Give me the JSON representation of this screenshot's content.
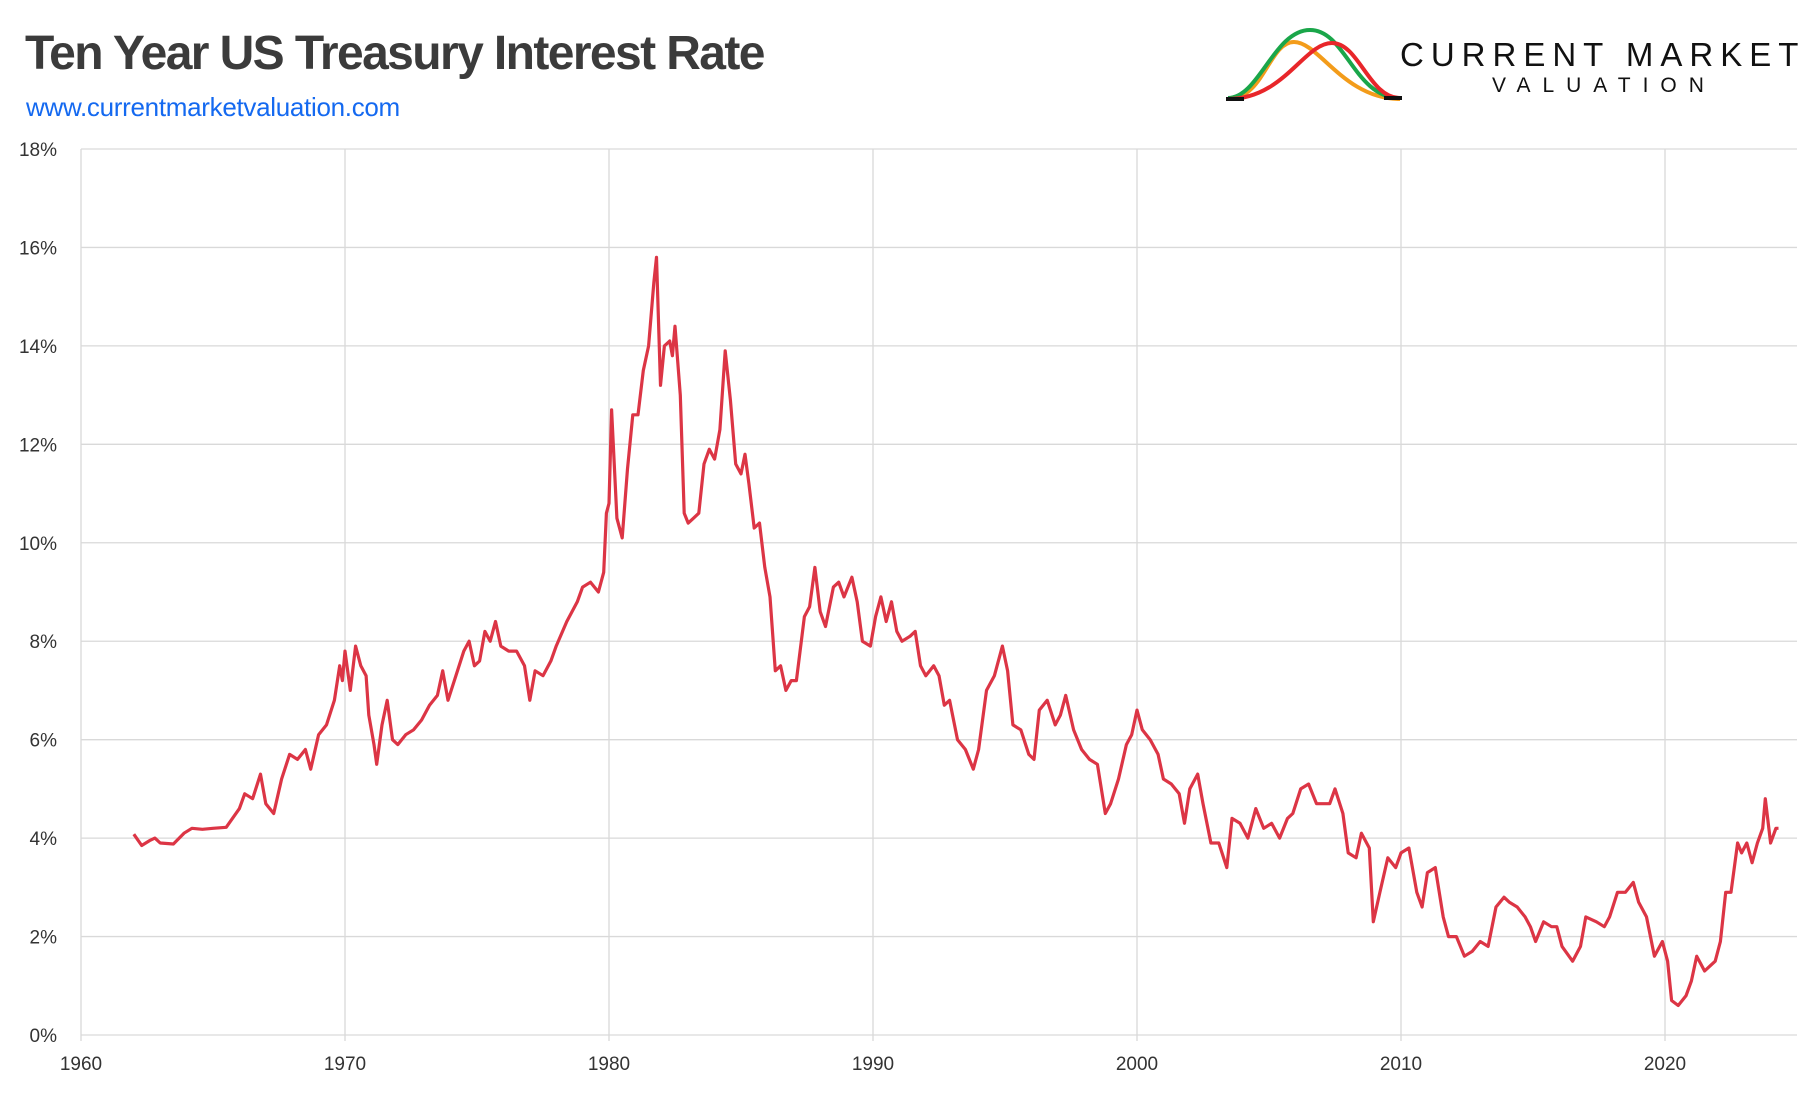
{
  "header": {
    "title": "Ten Year US Treasury Interest Rate",
    "url": "www.currentmarketvaluation.com"
  },
  "logo": {
    "line1": "CURRENT MARKET",
    "line2": "VALUATION",
    "colors": {
      "orange": "#f39c1a",
      "green": "#1aa64a",
      "red": "#e8262a",
      "base": "#111111"
    }
  },
  "colors": {
    "series": "#dc3545",
    "grid": "#d9d9d9",
    "url": "#1469f0",
    "title": "#3b3b3b"
  },
  "chart_data": {
    "type": "line",
    "title": "Ten Year US Treasury Interest Rate",
    "xlabel": "",
    "ylabel": "",
    "xlim": [
      1960,
      2025
    ],
    "ylim": [
      0,
      18
    ],
    "grid": true,
    "x_ticks": [
      1960,
      1970,
      1980,
      1990,
      2000,
      2010,
      2020
    ],
    "y_ticks": [
      "0%",
      "2%",
      "4%",
      "6%",
      "8%",
      "10%",
      "12%",
      "14%",
      "16%",
      "18%"
    ],
    "series": [
      {
        "color": "#dc3545",
        "points": [
          [
            1962.0,
            4.08
          ],
          [
            1962.3,
            3.85
          ],
          [
            1962.6,
            3.95
          ],
          [
            1962.8,
            4.0
          ],
          [
            1963.0,
            3.9
          ],
          [
            1963.5,
            3.88
          ],
          [
            1963.9,
            4.1
          ],
          [
            1964.2,
            4.2
          ],
          [
            1964.6,
            4.18
          ],
          [
            1965.0,
            4.2
          ],
          [
            1965.5,
            4.22
          ],
          [
            1966.0,
            4.6
          ],
          [
            1966.2,
            4.9
          ],
          [
            1966.5,
            4.8
          ],
          [
            1966.8,
            5.3
          ],
          [
            1967.0,
            4.7
          ],
          [
            1967.3,
            4.5
          ],
          [
            1967.6,
            5.2
          ],
          [
            1967.9,
            5.7
          ],
          [
            1968.2,
            5.6
          ],
          [
            1968.5,
            5.8
          ],
          [
            1968.7,
            5.4
          ],
          [
            1969.0,
            6.1
          ],
          [
            1969.3,
            6.3
          ],
          [
            1969.6,
            6.8
          ],
          [
            1969.8,
            7.5
          ],
          [
            1969.9,
            7.2
          ],
          [
            1970.0,
            7.8
          ],
          [
            1970.2,
            7.0
          ],
          [
            1970.4,
            7.9
          ],
          [
            1970.6,
            7.5
          ],
          [
            1970.8,
            7.3
          ],
          [
            1970.9,
            6.5
          ],
          [
            1971.1,
            5.9
          ],
          [
            1971.2,
            5.5
          ],
          [
            1971.4,
            6.3
          ],
          [
            1971.6,
            6.8
          ],
          [
            1971.8,
            6.0
          ],
          [
            1972.0,
            5.9
          ],
          [
            1972.3,
            6.1
          ],
          [
            1972.6,
            6.2
          ],
          [
            1972.9,
            6.4
          ],
          [
            1973.2,
            6.7
          ],
          [
            1973.5,
            6.9
          ],
          [
            1973.7,
            7.4
          ],
          [
            1973.9,
            6.8
          ],
          [
            1974.2,
            7.3
          ],
          [
            1974.5,
            7.8
          ],
          [
            1974.7,
            8.0
          ],
          [
            1974.9,
            7.5
          ],
          [
            1975.1,
            7.6
          ],
          [
            1975.3,
            8.2
          ],
          [
            1975.5,
            8.0
          ],
          [
            1975.7,
            8.4
          ],
          [
            1975.9,
            7.9
          ],
          [
            1976.2,
            7.8
          ],
          [
            1976.5,
            7.8
          ],
          [
            1976.8,
            7.5
          ],
          [
            1977.0,
            6.8
          ],
          [
            1977.2,
            7.4
          ],
          [
            1977.5,
            7.3
          ],
          [
            1977.8,
            7.6
          ],
          [
            1978.0,
            7.9
          ],
          [
            1978.4,
            8.4
          ],
          [
            1978.8,
            8.8
          ],
          [
            1979.0,
            9.1
          ],
          [
            1979.3,
            9.2
          ],
          [
            1979.6,
            9.0
          ],
          [
            1979.8,
            9.4
          ],
          [
            1979.9,
            10.6
          ],
          [
            1980.0,
            10.8
          ],
          [
            1980.1,
            12.7
          ],
          [
            1980.3,
            10.5
          ],
          [
            1980.5,
            10.1
          ],
          [
            1980.7,
            11.5
          ],
          [
            1980.9,
            12.6
          ],
          [
            1981.1,
            12.6
          ],
          [
            1981.3,
            13.5
          ],
          [
            1981.5,
            14.0
          ],
          [
            1981.7,
            15.3
          ],
          [
            1981.8,
            15.8
          ],
          [
            1981.95,
            13.2
          ],
          [
            1982.1,
            14.0
          ],
          [
            1982.3,
            14.1
          ],
          [
            1982.4,
            13.8
          ],
          [
            1982.5,
            14.4
          ],
          [
            1982.7,
            13.0
          ],
          [
            1982.85,
            10.6
          ],
          [
            1983.0,
            10.4
          ],
          [
            1983.2,
            10.5
          ],
          [
            1983.4,
            10.6
          ],
          [
            1983.6,
            11.6
          ],
          [
            1983.8,
            11.9
          ],
          [
            1984.0,
            11.7
          ],
          [
            1984.2,
            12.3
          ],
          [
            1984.4,
            13.9
          ],
          [
            1984.6,
            12.9
          ],
          [
            1984.8,
            11.6
          ],
          [
            1985.0,
            11.4
          ],
          [
            1985.15,
            11.8
          ],
          [
            1985.3,
            11.2
          ],
          [
            1985.5,
            10.3
          ],
          [
            1985.7,
            10.4
          ],
          [
            1985.9,
            9.5
          ],
          [
            1986.1,
            8.9
          ],
          [
            1986.3,
            7.4
          ],
          [
            1986.5,
            7.5
          ],
          [
            1986.7,
            7.0
          ],
          [
            1986.9,
            7.2
          ],
          [
            1987.1,
            7.2
          ],
          [
            1987.4,
            8.5
          ],
          [
            1987.6,
            8.7
          ],
          [
            1987.8,
            9.5
          ],
          [
            1988.0,
            8.6
          ],
          [
            1988.2,
            8.3
          ],
          [
            1988.5,
            9.1
          ],
          [
            1988.7,
            9.2
          ],
          [
            1988.9,
            8.9
          ],
          [
            1989.2,
            9.3
          ],
          [
            1989.4,
            8.8
          ],
          [
            1989.6,
            8.0
          ],
          [
            1989.9,
            7.9
          ],
          [
            1990.1,
            8.5
          ],
          [
            1990.3,
            8.9
          ],
          [
            1990.5,
            8.4
          ],
          [
            1990.7,
            8.8
          ],
          [
            1990.9,
            8.2
          ],
          [
            1991.1,
            8.0
          ],
          [
            1991.4,
            8.1
          ],
          [
            1991.6,
            8.2
          ],
          [
            1991.8,
            7.5
          ],
          [
            1992.0,
            7.3
          ],
          [
            1992.3,
            7.5
          ],
          [
            1992.5,
            7.3
          ],
          [
            1992.7,
            6.7
          ],
          [
            1992.9,
            6.8
          ],
          [
            1993.2,
            6.0
          ],
          [
            1993.5,
            5.8
          ],
          [
            1993.8,
            5.4
          ],
          [
            1994.0,
            5.8
          ],
          [
            1994.3,
            7.0
          ],
          [
            1994.6,
            7.3
          ],
          [
            1994.9,
            7.9
          ],
          [
            1995.1,
            7.4
          ],
          [
            1995.3,
            6.3
          ],
          [
            1995.6,
            6.2
          ],
          [
            1995.9,
            5.7
          ],
          [
            1996.1,
            5.6
          ],
          [
            1996.3,
            6.6
          ],
          [
            1996.6,
            6.8
          ],
          [
            1996.9,
            6.3
          ],
          [
            1997.1,
            6.5
          ],
          [
            1997.3,
            6.9
          ],
          [
            1997.6,
            6.2
          ],
          [
            1997.9,
            5.8
          ],
          [
            1998.2,
            5.6
          ],
          [
            1998.5,
            5.5
          ],
          [
            1998.8,
            4.5
          ],
          [
            1999.0,
            4.7
          ],
          [
            1999.3,
            5.2
          ],
          [
            1999.6,
            5.9
          ],
          [
            1999.8,
            6.1
          ],
          [
            2000.0,
            6.6
          ],
          [
            2000.2,
            6.2
          ],
          [
            2000.5,
            6.0
          ],
          [
            2000.8,
            5.7
          ],
          [
            2001.0,
            5.2
          ],
          [
            2001.3,
            5.1
          ],
          [
            2001.6,
            4.9
          ],
          [
            2001.8,
            4.3
          ],
          [
            2002.0,
            5.0
          ],
          [
            2002.3,
            5.3
          ],
          [
            2002.5,
            4.7
          ],
          [
            2002.8,
            3.9
          ],
          [
            2003.1,
            3.9
          ],
          [
            2003.4,
            3.4
          ],
          [
            2003.6,
            4.4
          ],
          [
            2003.9,
            4.3
          ],
          [
            2004.2,
            4.0
          ],
          [
            2004.5,
            4.6
          ],
          [
            2004.8,
            4.2
          ],
          [
            2005.1,
            4.3
          ],
          [
            2005.4,
            4.0
          ],
          [
            2005.7,
            4.4
          ],
          [
            2005.9,
            4.5
          ],
          [
            2006.2,
            5.0
          ],
          [
            2006.5,
            5.1
          ],
          [
            2006.8,
            4.7
          ],
          [
            2007.0,
            4.7
          ],
          [
            2007.3,
            4.7
          ],
          [
            2007.5,
            5.0
          ],
          [
            2007.8,
            4.5
          ],
          [
            2008.0,
            3.7
          ],
          [
            2008.3,
            3.6
          ],
          [
            2008.5,
            4.1
          ],
          [
            2008.8,
            3.8
          ],
          [
            2008.95,
            2.3
          ],
          [
            2009.2,
            2.9
          ],
          [
            2009.5,
            3.6
          ],
          [
            2009.8,
            3.4
          ],
          [
            2010.0,
            3.7
          ],
          [
            2010.3,
            3.8
          ],
          [
            2010.6,
            2.9
          ],
          [
            2010.8,
            2.6
          ],
          [
            2011.0,
            3.3
          ],
          [
            2011.3,
            3.4
          ],
          [
            2011.6,
            2.4
          ],
          [
            2011.8,
            2.0
          ],
          [
            2012.1,
            2.0
          ],
          [
            2012.4,
            1.6
          ],
          [
            2012.7,
            1.7
          ],
          [
            2013.0,
            1.9
          ],
          [
            2013.3,
            1.8
          ],
          [
            2013.6,
            2.6
          ],
          [
            2013.9,
            2.8
          ],
          [
            2014.1,
            2.7
          ],
          [
            2014.4,
            2.6
          ],
          [
            2014.7,
            2.4
          ],
          [
            2014.9,
            2.2
          ],
          [
            2015.1,
            1.9
          ],
          [
            2015.4,
            2.3
          ],
          [
            2015.7,
            2.2
          ],
          [
            2015.9,
            2.2
          ],
          [
            2016.1,
            1.8
          ],
          [
            2016.5,
            1.5
          ],
          [
            2016.8,
            1.8
          ],
          [
            2017.0,
            2.4
          ],
          [
            2017.4,
            2.3
          ],
          [
            2017.7,
            2.2
          ],
          [
            2017.9,
            2.4
          ],
          [
            2018.2,
            2.9
          ],
          [
            2018.5,
            2.9
          ],
          [
            2018.8,
            3.1
          ],
          [
            2019.0,
            2.7
          ],
          [
            2019.3,
            2.4
          ],
          [
            2019.6,
            1.6
          ],
          [
            2019.9,
            1.9
          ],
          [
            2020.1,
            1.5
          ],
          [
            2020.25,
            0.7
          ],
          [
            2020.5,
            0.6
          ],
          [
            2020.8,
            0.8
          ],
          [
            2021.0,
            1.1
          ],
          [
            2021.2,
            1.6
          ],
          [
            2021.5,
            1.3
          ],
          [
            2021.7,
            1.4
          ],
          [
            2021.9,
            1.5
          ],
          [
            2022.1,
            1.9
          ],
          [
            2022.3,
            2.9
          ],
          [
            2022.5,
            2.9
          ],
          [
            2022.75,
            3.9
          ],
          [
            2022.9,
            3.7
          ],
          [
            2023.1,
            3.9
          ],
          [
            2023.3,
            3.5
          ],
          [
            2023.5,
            3.9
          ],
          [
            2023.7,
            4.2
          ],
          [
            2023.8,
            4.8
          ],
          [
            2024.0,
            3.9
          ],
          [
            2024.2,
            4.2
          ],
          [
            2024.3,
            4.2
          ]
        ]
      }
    ]
  }
}
